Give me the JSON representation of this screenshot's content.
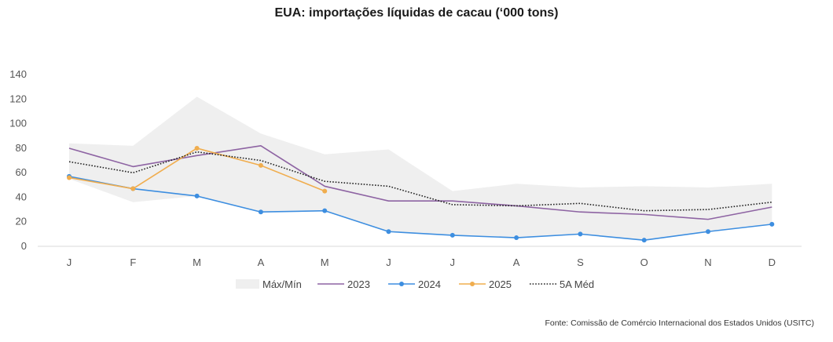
{
  "chart_data": {
    "type": "line",
    "title": "EUA: importações líquidas de cacau (‘000 tons)",
    "categories": [
      "J",
      "F",
      "M",
      "A",
      "M",
      "J",
      "J",
      "A",
      "S",
      "O",
      "N",
      "D"
    ],
    "ylim": [
      0,
      140
    ],
    "yticks": [
      0,
      20,
      40,
      60,
      80,
      100,
      120,
      140
    ],
    "grid": false,
    "legend_position": "bottom",
    "band": {
      "name": "Máx/Mín",
      "color": "#efefef",
      "max": [
        84,
        82,
        122,
        92,
        75,
        79,
        45,
        51,
        48,
        49,
        48,
        51
      ],
      "min": [
        55,
        36,
        41,
        28,
        29,
        12,
        9,
        7,
        10,
        5,
        12,
        18
      ]
    },
    "series": [
      {
        "name": "2023",
        "color": "#8e64a3",
        "style": "solid",
        "markers": false,
        "values": [
          80,
          65,
          74,
          82,
          49,
          37,
          37,
          33,
          28,
          26,
          22,
          32
        ]
      },
      {
        "name": "2024",
        "color": "#3d8ee0",
        "style": "solid",
        "markers": true,
        "values": [
          57,
          47,
          41,
          28,
          29,
          12,
          9,
          7,
          10,
          5,
          12,
          18
        ]
      },
      {
        "name": "2025",
        "color": "#f0ad4e",
        "style": "solid",
        "markers": true,
        "values": [
          56,
          47,
          80,
          66,
          45,
          null,
          null,
          null,
          null,
          null,
          null,
          null
        ]
      },
      {
        "name": "5A Méd",
        "color": "#222222",
        "style": "dotted",
        "markers": false,
        "values": [
          69,
          60,
          77,
          70,
          53,
          49,
          34,
          33,
          35,
          29,
          30,
          36
        ]
      }
    ]
  },
  "source": "Fonte: Comissão de Comércio Internacional dos Estados Unidos (USITC)"
}
